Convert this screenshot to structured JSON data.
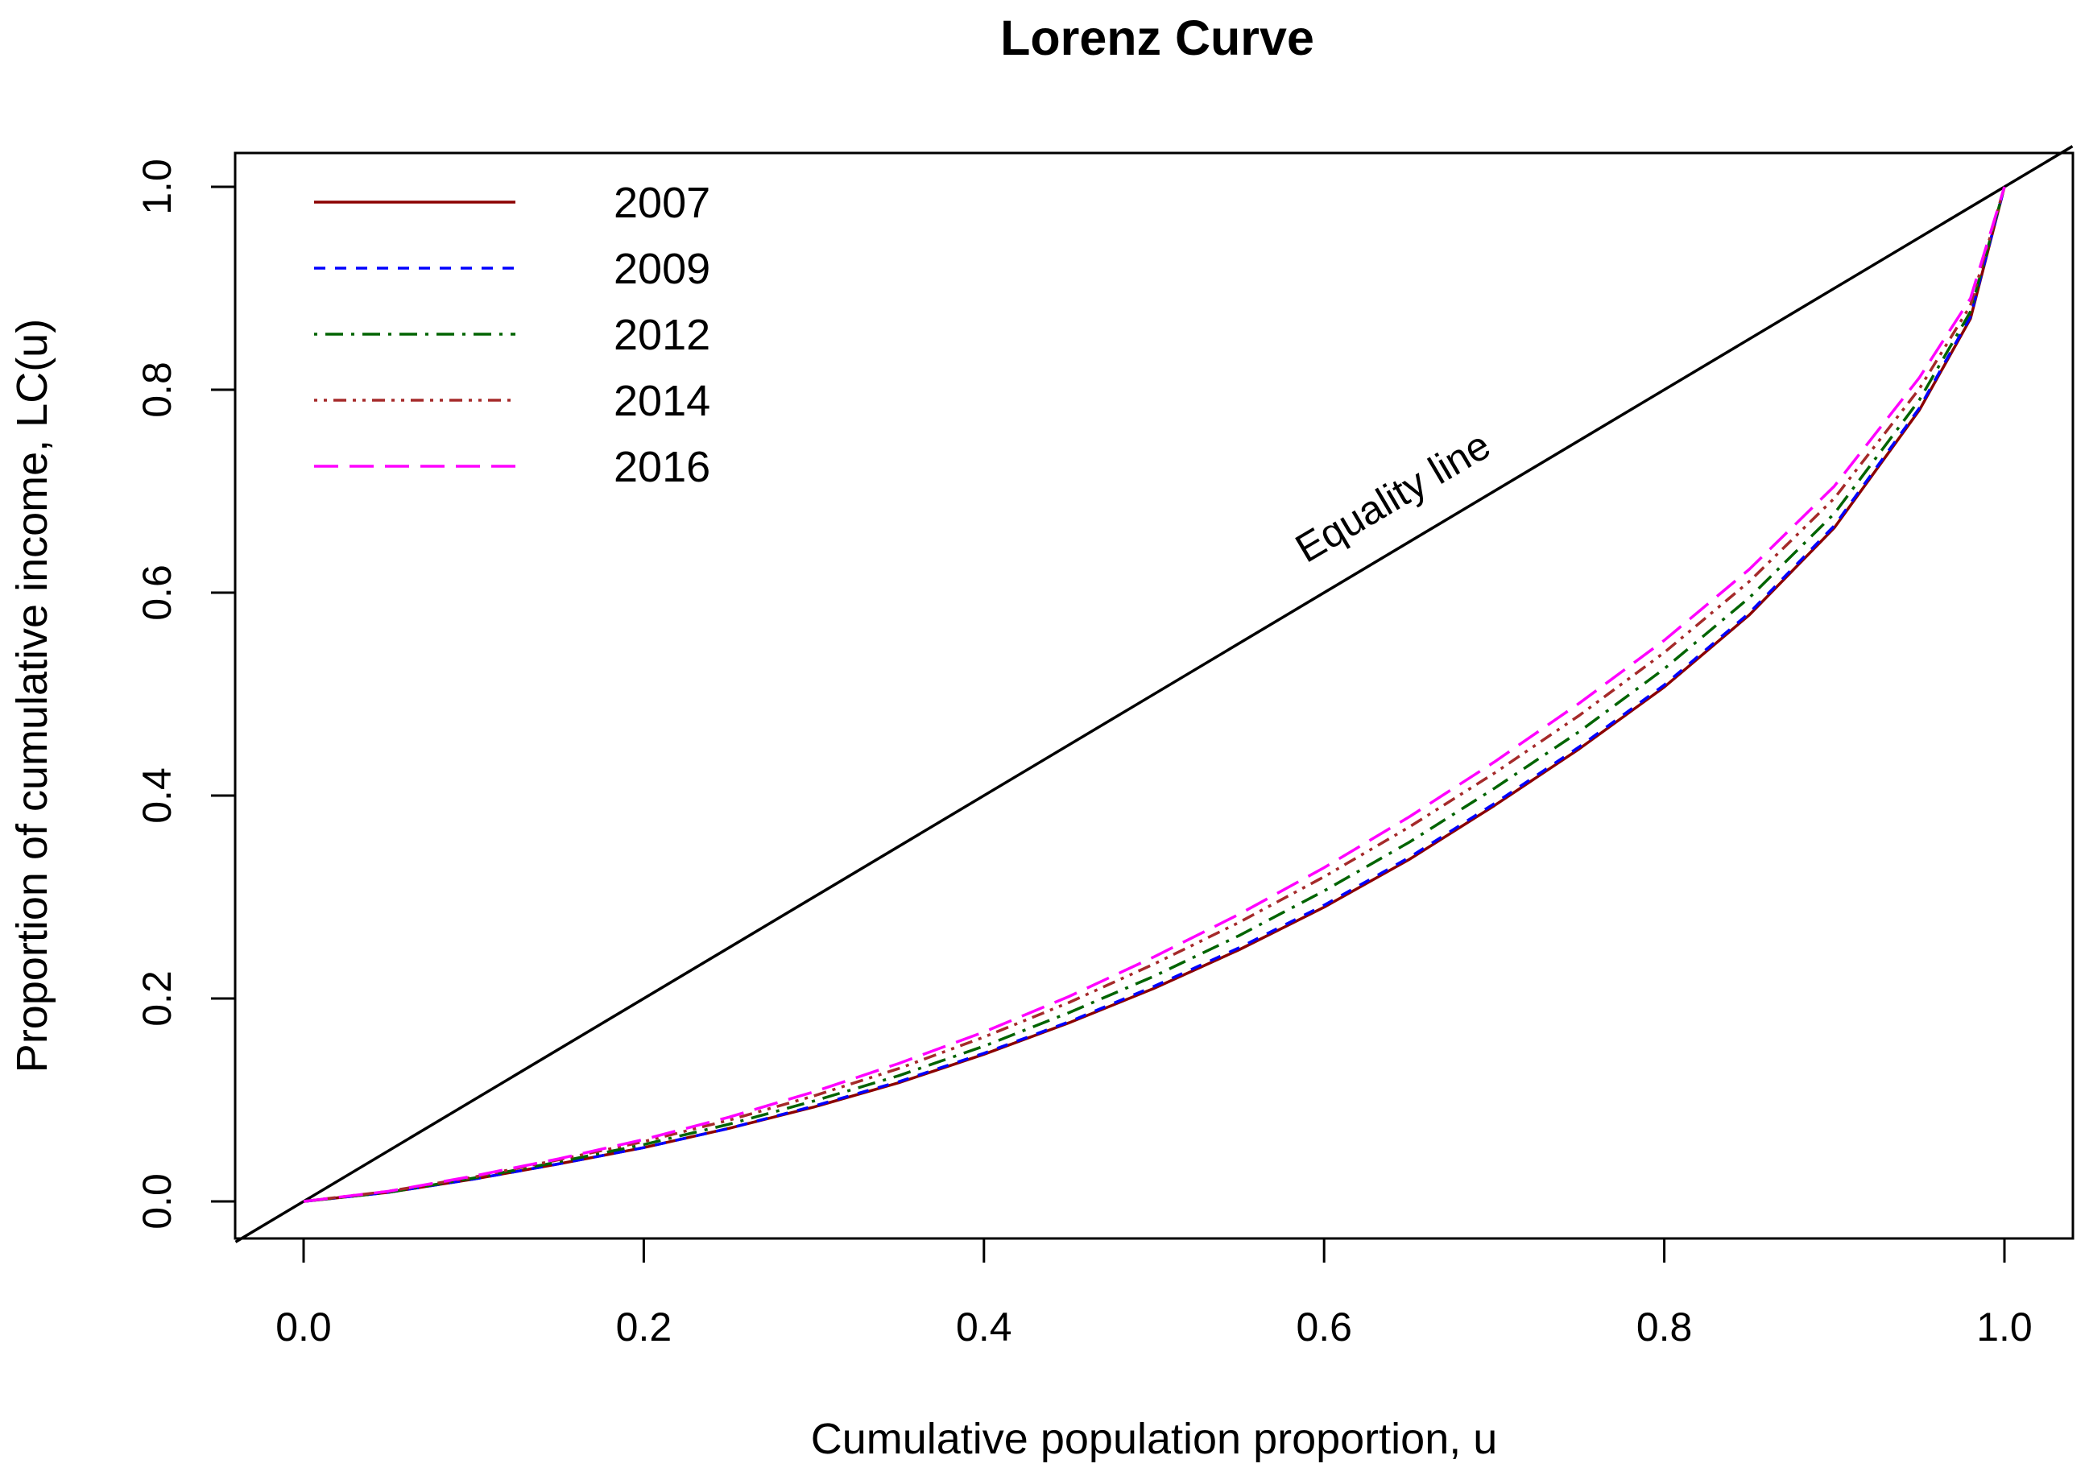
{
  "chart_data": {
    "type": "line",
    "title": "Lorenz Curve",
    "xlabel": "Cumulative population proportion, u",
    "ylabel": "Proportion of cumulative income, LC(u)",
    "xlim": [
      0,
      1
    ],
    "ylim": [
      0,
      1
    ],
    "x_ticks": [
      "0.0",
      "0.2",
      "0.4",
      "0.6",
      "0.8",
      "1.0"
    ],
    "y_ticks": [
      "0.0",
      "0.2",
      "0.4",
      "0.6",
      "0.8",
      "1.0"
    ],
    "grid": false,
    "legend_position": "top-left",
    "annotations": [
      {
        "text": "Equality line"
      }
    ],
    "equality_line": {
      "x": [
        0,
        1
      ],
      "y": [
        0,
        1
      ],
      "color": "#000000"
    },
    "x": [
      0,
      0.05,
      0.1,
      0.15,
      0.2,
      0.25,
      0.3,
      0.35,
      0.4,
      0.45,
      0.5,
      0.55,
      0.6,
      0.65,
      0.7,
      0.75,
      0.8,
      0.85,
      0.9,
      0.95,
      0.98,
      1.0
    ],
    "series": [
      {
        "name": "2007",
        "color": "#8b0000",
        "dash": "solid",
        "values": [
          0,
          0.009,
          0.022,
          0.037,
          0.053,
          0.072,
          0.093,
          0.117,
          0.145,
          0.176,
          0.21,
          0.248,
          0.29,
          0.337,
          0.39,
          0.446,
          0.507,
          0.578,
          0.664,
          0.78,
          0.87,
          1.0
        ]
      },
      {
        "name": "2009",
        "color": "#0000ff",
        "dash": "dashed",
        "values": [
          0,
          0.009,
          0.022,
          0.037,
          0.053,
          0.072,
          0.094,
          0.118,
          0.146,
          0.177,
          0.212,
          0.25,
          0.292,
          0.339,
          0.392,
          0.448,
          0.509,
          0.58,
          0.666,
          0.782,
          0.872,
          1.0
        ]
      },
      {
        "name": "2012",
        "color": "#006400",
        "dash": "dotdash",
        "values": [
          0,
          0.009,
          0.023,
          0.039,
          0.056,
          0.076,
          0.099,
          0.124,
          0.153,
          0.186,
          0.222,
          0.262,
          0.306,
          0.354,
          0.407,
          0.463,
          0.525,
          0.595,
          0.678,
          0.79,
          0.877,
          1.0
        ]
      },
      {
        "name": "2014",
        "color": "#a52a2a",
        "dash": "dotdot",
        "values": [
          0,
          0.01,
          0.024,
          0.041,
          0.059,
          0.08,
          0.104,
          0.131,
          0.162,
          0.196,
          0.234,
          0.275,
          0.32,
          0.369,
          0.422,
          0.479,
          0.541,
          0.611,
          0.693,
          0.801,
          0.883,
          1.0
        ]
      },
      {
        "name": "2016",
        "color": "#ff00ff",
        "dash": "longdash",
        "values": [
          0,
          0.01,
          0.025,
          0.042,
          0.061,
          0.083,
          0.108,
          0.136,
          0.167,
          0.202,
          0.241,
          0.283,
          0.329,
          0.379,
          0.433,
          0.491,
          0.553,
          0.623,
          0.705,
          0.812,
          0.89,
          1.0
        ]
      }
    ]
  }
}
